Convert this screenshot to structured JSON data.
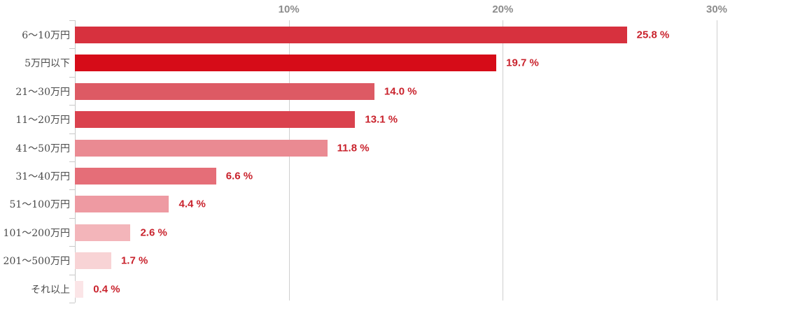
{
  "chart_data": {
    "type": "bar",
    "orientation": "horizontal",
    "title": "",
    "xlabel": "",
    "ylabel": "",
    "categories": [
      "6〜10万円",
      "5万円以下",
      "21〜30万円",
      "11〜20万円",
      "41〜50万円",
      "31〜40万円",
      "51〜100万円",
      "101〜200万円",
      "201〜500万円",
      "それ以上"
    ],
    "values": [
      25.8,
      19.7,
      14.0,
      13.1,
      11.8,
      6.6,
      4.4,
      2.6,
      1.7,
      0.4
    ],
    "value_labels": [
      "25.8 %",
      "19.7 %",
      "14.0 %",
      "13.1 %",
      "11.8 %",
      "6.6 %",
      "4.4 %",
      "2.6 %",
      "1.7 %",
      "0.4 %"
    ],
    "bar_colors": [
      "#d7313e",
      "#d60c18",
      "#dd5a64",
      "#da424e",
      "#ea8a92",
      "#e56e78",
      "#ee9aa2",
      "#f3b5ba",
      "#f8d3d5",
      "#fbe5e7"
    ],
    "x_axis": {
      "tick_labels": [
        "10%",
        "20%",
        "30%"
      ],
      "tick_values": [
        10,
        20,
        30
      ],
      "min": 0,
      "max": 33.2
    },
    "grid": true,
    "legend": "none"
  },
  "colors": {
    "background": "#ffffff",
    "gridline": "#cfcfcf",
    "axis_line": "#c9c9c9",
    "axis_tick_label": "#8c8c8c",
    "category_label": "#4a4a4a",
    "value_label": "#c9232d"
  }
}
